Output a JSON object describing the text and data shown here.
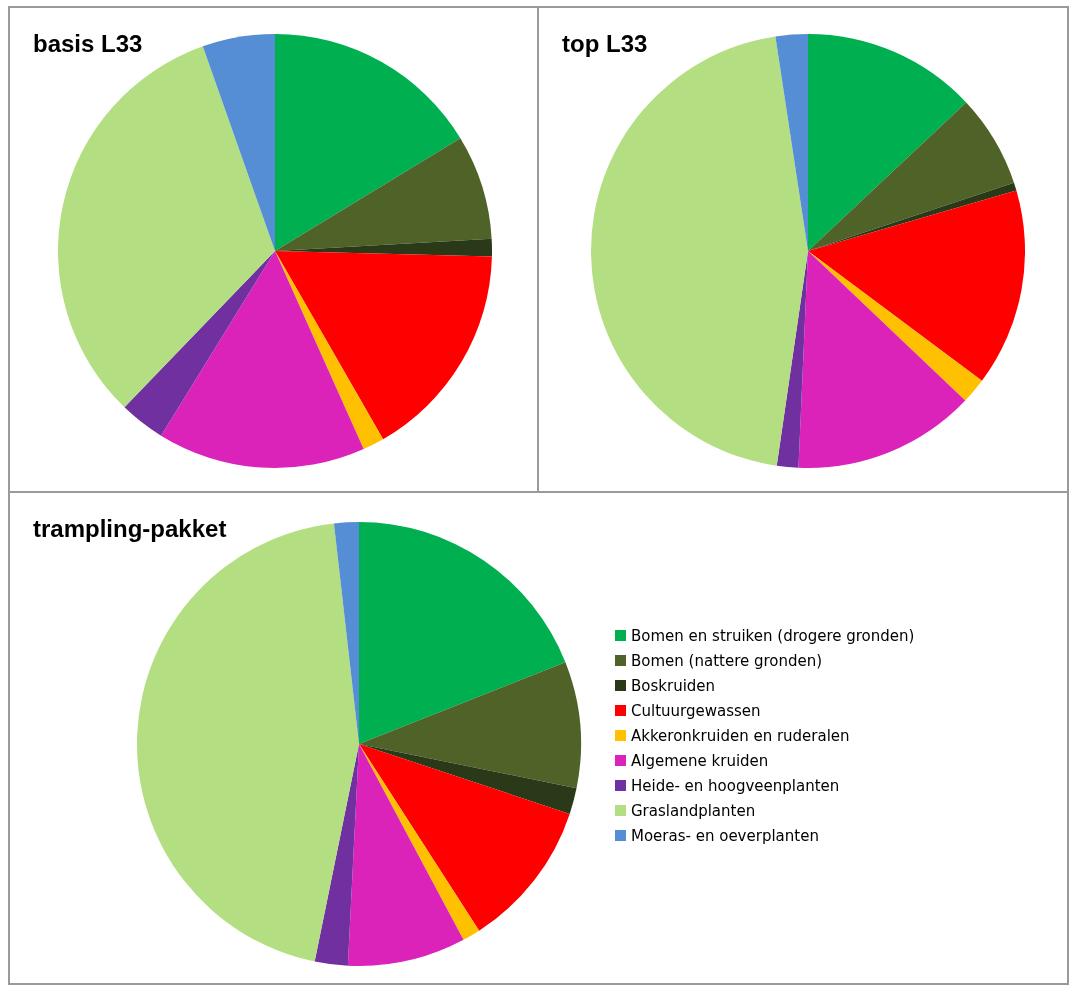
{
  "chart_data": [
    {
      "type": "pie",
      "title": "basis L33",
      "categories": [
        null,
        null,
        null,
        null,
        null,
        null,
        null,
        null,
        null
      ],
      "values": [
        16.3,
        7.8,
        1.3,
        16.3,
        1.6,
        15.5,
        3.4,
        32.4,
        5.4
      ],
      "colors": [
        "#00b050",
        "#4f6228",
        "#2a3a18",
        "#ff0000",
        "#ffc000",
        "#dc23b9",
        "#7030a0",
        "#b3de81",
        "#558ed5"
      ],
      "legend": false
    },
    {
      "type": "pie",
      "title": "top L33",
      "categories": [
        null,
        null,
        null,
        null,
        null,
        null,
        null,
        null,
        null
      ],
      "values": [
        13.0,
        6.9,
        0.6,
        14.7,
        1.9,
        13.6,
        1.6,
        45.3,
        2.4
      ],
      "colors": [
        "#00b050",
        "#4f6228",
        "#2a3a18",
        "#ff0000",
        "#ffc000",
        "#dc23b9",
        "#7030a0",
        "#b3de81",
        "#558ed5"
      ],
      "legend": false
    },
    {
      "type": "pie",
      "title": "trampling-pakket",
      "categories": [
        "Bomen en struiken (drogere gronden)",
        "Bomen (nattere gronden)",
        "Boskruiden",
        "Cultuurgewassen",
        "Akkeronkruiden en ruderalen",
        "Algemene kruiden",
        "Heide- en hoogveenplanten",
        "Graslandplanten",
        "Moeras- en oeverplanten"
      ],
      "values": [
        19.0,
        9.2,
        1.9,
        10.8,
        1.3,
        8.6,
        2.4,
        45.0,
        1.8
      ],
      "colors": [
        "#00b050",
        "#4f6228",
        "#2a3a18",
        "#ff0000",
        "#ffc000",
        "#dc23b9",
        "#7030a0",
        "#b3de81",
        "#558ed5"
      ],
      "legend": "right"
    }
  ]
}
